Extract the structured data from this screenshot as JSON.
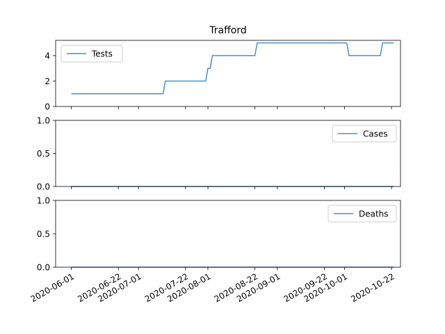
{
  "chart_data": {
    "type": "line",
    "title": "Trafford",
    "series_color": "#4a8fc7",
    "x_ticks": [
      "2020-06-01",
      "2020-06-22",
      "2020-07-01",
      "2020-07-22",
      "2020-08-01",
      "2020-08-22",
      "2020-09-01",
      "2020-09-22",
      "2020-10-01",
      "2020-10-22"
    ],
    "xlim": [
      "2020-05-25",
      "2020-10-26"
    ],
    "panels": [
      {
        "name": "Tests",
        "legend_position": "upper-left",
        "ylim": [
          0,
          5.2
        ],
        "y_ticks": [
          "0",
          "2",
          "4"
        ],
        "y_tick_values": [
          0,
          2,
          4
        ],
        "points": [
          [
            "2020-06-01",
            1
          ],
          [
            "2020-07-12",
            1
          ],
          [
            "2020-07-13",
            2
          ],
          [
            "2020-07-31",
            2
          ],
          [
            "2020-08-01",
            3
          ],
          [
            "2020-08-02",
            3
          ],
          [
            "2020-08-03",
            4
          ],
          [
            "2020-08-22",
            4
          ],
          [
            "2020-08-23",
            5
          ],
          [
            "2020-10-02",
            5
          ],
          [
            "2020-10-03",
            4
          ],
          [
            "2020-10-17",
            4
          ],
          [
            "2020-10-18",
            5
          ],
          [
            "2020-10-23",
            5
          ]
        ]
      },
      {
        "name": "Cases",
        "legend_position": "upper-right",
        "ylim": [
          0,
          1
        ],
        "y_ticks": [
          "0.0",
          "0.5",
          "1.0"
        ],
        "y_tick_values": [
          0,
          0.5,
          1
        ],
        "points": [
          [
            "2020-06-01",
            0
          ],
          [
            "2020-10-23",
            0
          ]
        ]
      },
      {
        "name": "Deaths",
        "legend_position": "upper-right",
        "ylim": [
          0,
          1
        ],
        "y_ticks": [
          "0.0",
          "0.5",
          "1.0"
        ],
        "y_tick_values": [
          0,
          0.5,
          1
        ],
        "points": [
          [
            "2020-06-01",
            0
          ],
          [
            "2020-10-23",
            0
          ]
        ]
      }
    ]
  }
}
